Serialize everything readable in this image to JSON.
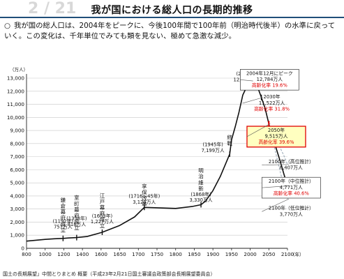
{
  "slide_number": "2 / 21",
  "title": "我が国における総人口の長期的推移",
  "bullet": {
    "mark": "○",
    "text": "我が国の総人口は、2004年をピークに、今後100年間で100年前（明治時代後半）の水準に戻っていく。この変化は、千年単位でみても類を見ない、極めて急激な減少。"
  },
  "footer": "国土の長期展望」中間とりまとめ 概要（平成23年2月21日国土審議会政策部会長期展望委員会）",
  "chart_data": {
    "type": "line",
    "y_unit": "（万人）",
    "x_unit": "（年）",
    "xlim": [
      800,
      2100
    ],
    "ylim": [
      0,
      13000
    ],
    "x_ticks": [
      "800",
      "1000",
      "1200",
      "1400",
      "1600",
      "1650",
      "1700",
      "1750",
      "1800",
      "1850",
      "1900",
      "1950",
      "2000",
      "2050",
      "2100"
    ],
    "y_ticks": [
      "0",
      "1,000",
      "2,000",
      "3,000",
      "4,000",
      "5,000",
      "6,000",
      "7,000",
      "8,000",
      "9,000",
      "10,000",
      "11,000",
      "12,000",
      "13,000"
    ],
    "y_tick_values": [
      0,
      1000,
      2000,
      3000,
      4000,
      5000,
      6000,
      7000,
      8000,
      9000,
      10000,
      11000,
      12000,
      13000
    ],
    "x_tick_values": [
      800,
      1000,
      1200,
      1400,
      1600,
      1650,
      1700,
      1750,
      1800,
      1850,
      1900,
      1950,
      2000,
      2050,
      2100
    ],
    "series": [
      {
        "style": "historical",
        "x": [
          800,
          900,
          1000,
          1100,
          1192,
          1250,
          1338,
          1450,
          1500,
          1550,
          1603,
          1650,
          1690,
          1716,
          1745,
          1800,
          1846,
          1868,
          1880,
          1900,
          1920,
          1945,
          1950,
          1960,
          1970,
          1980,
          1990,
          2000,
          2004
        ],
        "y": [
          550,
          620,
          680,
          730,
          757,
          790,
          818,
          900,
          1000,
          1100,
          1227,
          1750,
          2400,
          3128,
          3100,
          3050,
          3200,
          3330,
          3600,
          4400,
          5500,
          7199,
          8300,
          9300,
          10400,
          11700,
          12300,
          12693,
          12784
        ]
      },
      {
        "style": "projection-medium",
        "x": [
          2004,
          2010,
          2020,
          2030,
          2040,
          2050,
          2060,
          2070,
          2080,
          2090,
          2100
        ],
        "y": [
          12784,
          12700,
          12300,
          11522,
          10700,
          9515,
          8600,
          7600,
          6700,
          5700,
          4771
        ]
      },
      {
        "style": "projection-high",
        "x": [
          2050,
          2060,
          2070,
          2080,
          2090,
          2100
        ],
        "y": [
          9515,
          8900,
          8300,
          7700,
          7100,
          6407
        ]
      },
      {
        "style": "projection-low",
        "x": [
          2050,
          2060,
          2070,
          2080,
          2090,
          2100
        ],
        "y": [
          9515,
          8300,
          7100,
          5900,
          4800,
          3770
        ]
      }
    ],
    "markers": [
      {
        "x": 1192,
        "y": 757
      },
      {
        "x": 1338,
        "y": 818
      },
      {
        "x": 1603,
        "y": 1227
      },
      {
        "x": 1716,
        "y": 3128
      },
      {
        "x": 1868,
        "y": 3330
      },
      {
        "x": 1945,
        "y": 7199
      },
      {
        "x": 2000,
        "y": 12693
      },
      {
        "x": 2004,
        "y": 12784
      },
      {
        "x": 2030,
        "y": 11522
      },
      {
        "x": 2050,
        "y": 9515
      }
    ],
    "event_labels": [
      {
        "text": "鎌倉幕府成立",
        "x": 1192,
        "y": 3550
      },
      {
        "text": "室町幕府成立",
        "x": 1338,
        "y": 3720
      },
      {
        "text": "江戸幕府成立",
        "x": 1603,
        "y": 3900
      },
      {
        "text": "享保改革",
        "x": 1716,
        "y": 4600
      },
      {
        "text": "明治維新",
        "x": 1868,
        "y": 5800
      },
      {
        "text": "終戦",
        "x": 1945,
        "y": 8350
      }
    ],
    "point_labels": [
      {
        "lines": [
          "(1192年)",
          "757万人"
        ],
        "x": 1192,
        "y": 1950
      },
      {
        "lines": [
          "(1338年)",
          "818万人"
        ],
        "x": 1338,
        "y": 2150
      },
      {
        "lines": [
          "(1603年)",
          "1,227万人"
        ],
        "x": 1603,
        "y": 2350
      },
      {
        "lines": [
          "(1716～45年)",
          "3,128万人"
        ],
        "x": 1716,
        "y": 3850
      },
      {
        "lines": [
          "(1868年)",
          "3,330万人"
        ],
        "x": 1868,
        "y": 4000
      },
      {
        "lines": [
          "(1945年)",
          "7,199万人"
        ],
        "x": 1900,
        "y": 7800
      },
      {
        "lines": [
          "(2000年)",
          "12,693万人"
        ],
        "x": 1990,
        "y": 13200
      }
    ],
    "callouts": [
      {
        "lines": [
          "2004年12月にピーク",
          "12,784万人"
        ],
        "rate": "高齢化率 19.6%",
        "x": 2052,
        "y": 13300,
        "boxed": true,
        "highlight": false,
        "anchor_x": 2004,
        "anchor_y": 12784
      },
      {
        "lines": [
          "2030年",
          "11,522万人"
        ],
        "rate": "高齢化率 31.8%",
        "x": 2058,
        "y": 11500,
        "boxed": false,
        "highlight": false,
        "anchor_x": 2030,
        "anchor_y": 11522
      },
      {
        "lines": [
          "2050年",
          "9,515万人"
        ],
        "rate": "高齢化率 39.6%",
        "x": 2070,
        "y": 8950,
        "boxed": true,
        "highlight": true,
        "anchor_x": 2050,
        "anchor_y": 9515
      },
      {
        "lines": [
          "2100年（高位推計）",
          "6,407万人"
        ],
        "rate": "",
        "x": 2110,
        "y": 6550,
        "boxed": false,
        "highlight": false,
        "anchor_x": 2100,
        "anchor_y": 6407
      },
      {
        "lines": [
          "2100年（中位推計）",
          "4,771万人"
        ],
        "rate": "高齢化率 40.6%",
        "x": 2110,
        "y": 5050,
        "boxed": true,
        "highlight": false,
        "anchor_x": 2100,
        "anchor_y": 4771
      },
      {
        "lines": [
          "2100年（低位推計）",
          "3,770万人"
        ],
        "rate": "",
        "x": 2110,
        "y": 3000,
        "boxed": false,
        "highlight": false,
        "anchor_x": 2100,
        "anchor_y": 3770
      }
    ],
    "colors": {
      "line": "#111111",
      "rate": "#e00000",
      "highlight_fill": "#ffffc0",
      "highlight_border": "#e00000",
      "peak_marker": "#e00000",
      "projection_light": "#9aa9b8"
    }
  }
}
